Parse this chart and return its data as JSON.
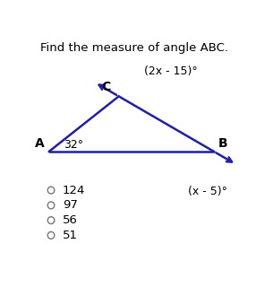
{
  "title": "Find the measure of angle ABC.",
  "title_fontsize": 9.5,
  "title_color": "#000000",
  "bg_color": "#ffffff",
  "line_color": "#1f1faa",
  "line_width": 1.8,
  "A": [
    0.07,
    0.47
  ],
  "B": [
    0.85,
    0.47
  ],
  "C": [
    0.4,
    0.72
  ],
  "angle_A_label": "32°",
  "label_A": "A",
  "label_B": "B",
  "label_C": "C",
  "expr_C": "(2x - 15)°",
  "expr_B": "(x - 5)°",
  "choices": [
    "124",
    "97",
    "56",
    "51"
  ],
  "choice_fontsize": 9.5,
  "text_color": "#000000",
  "label_fontsize": 10
}
